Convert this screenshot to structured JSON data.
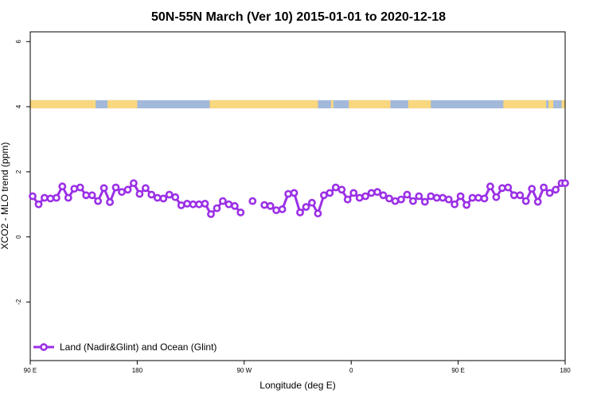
{
  "chart_data": {
    "type": "line",
    "title": "50N-55N March (Ver 10)   2015-01-01 to 2020-12-18",
    "xlabel": "Longitude (deg E)",
    "ylabel": "XCO2 - MLO trend (ppm)",
    "x_ticks": [
      {
        "label": "90 E",
        "value": 90
      },
      {
        "label": "180",
        "value": 180
      },
      {
        "label": "90 W",
        "value": 270
      },
      {
        "label": "0",
        "value": 360
      },
      {
        "label": "90 E",
        "value": 450
      },
      {
        "label": "180",
        "value": 540
      }
    ],
    "y_ticks": [
      "-2",
      "0",
      "2",
      "4",
      "6"
    ],
    "xlim": [
      90,
      540
    ],
    "ylim": [
      -3.8,
      6.3
    ],
    "grid": false,
    "legend_placement": "bottom-left",
    "surface_strip": {
      "y_range": [
        3.95,
        4.2
      ],
      "land_color": "#f9d77e",
      "ocean_color": "#a3b9da",
      "land_lon_ranges": [
        [
          90,
          145
        ],
        [
          155,
          180
        ],
        [
          241,
          332
        ],
        [
          343,
          345
        ],
        [
          358,
          393
        ],
        [
          408,
          427
        ],
        [
          488,
          524
        ],
        [
          526,
          530
        ],
        [
          537,
          540
        ]
      ]
    },
    "series": [
      {
        "name": "Land (Nadir&Glint) and Ocean (Glint)",
        "color": "#9b30e6",
        "x": [
          92,
          97,
          102,
          107,
          112,
          117,
          122,
          127,
          132,
          137,
          142,
          147,
          152,
          157,
          162,
          167,
          172,
          177,
          182,
          187,
          192,
          197,
          202,
          207,
          212,
          217,
          222,
          227,
          232,
          237,
          242,
          247,
          252,
          257,
          262,
          267,
          272,
          null,
          277,
          null,
          287,
          292,
          297,
          302,
          307,
          312,
          317,
          322,
          327,
          332,
          337,
          342,
          347,
          352,
          357,
          362,
          367,
          372,
          377,
          382,
          387,
          392,
          397,
          402,
          407,
          412,
          417,
          422,
          427,
          432,
          437,
          442,
          447,
          452,
          457,
          462,
          467,
          472,
          477,
          482,
          487,
          492,
          497,
          502,
          507,
          512,
          517,
          522,
          527,
          532,
          537,
          540
        ],
        "y": [
          1.25,
          1.0,
          1.2,
          1.18,
          1.2,
          1.55,
          1.2,
          1.48,
          1.52,
          1.28,
          1.28,
          1.1,
          1.5,
          1.07,
          1.52,
          1.38,
          1.45,
          1.65,
          1.32,
          1.5,
          1.3,
          1.2,
          1.18,
          1.3,
          1.22,
          0.97,
          1.02,
          1.0,
          1.0,
          1.02,
          0.7,
          0.88,
          1.1,
          1.0,
          0.95,
          0.75,
          null,
          null,
          1.1,
          null,
          0.98,
          0.95,
          0.82,
          0.85,
          1.32,
          1.35,
          0.75,
          0.92,
          1.05,
          0.72,
          1.28,
          1.35,
          1.52,
          1.45,
          1.15,
          1.35,
          1.2,
          1.25,
          1.35,
          1.38,
          1.28,
          1.18,
          1.1,
          1.15,
          1.3,
          1.1,
          1.25,
          1.08,
          1.25,
          1.2,
          1.2,
          1.15,
          1.0,
          1.25,
          0.98,
          1.2,
          1.2,
          1.18,
          1.55,
          1.22,
          1.5,
          1.52,
          1.28,
          1.28,
          1.1,
          1.48,
          1.08,
          1.52,
          1.35,
          1.45,
          1.65,
          1.65
        ]
      }
    ]
  }
}
